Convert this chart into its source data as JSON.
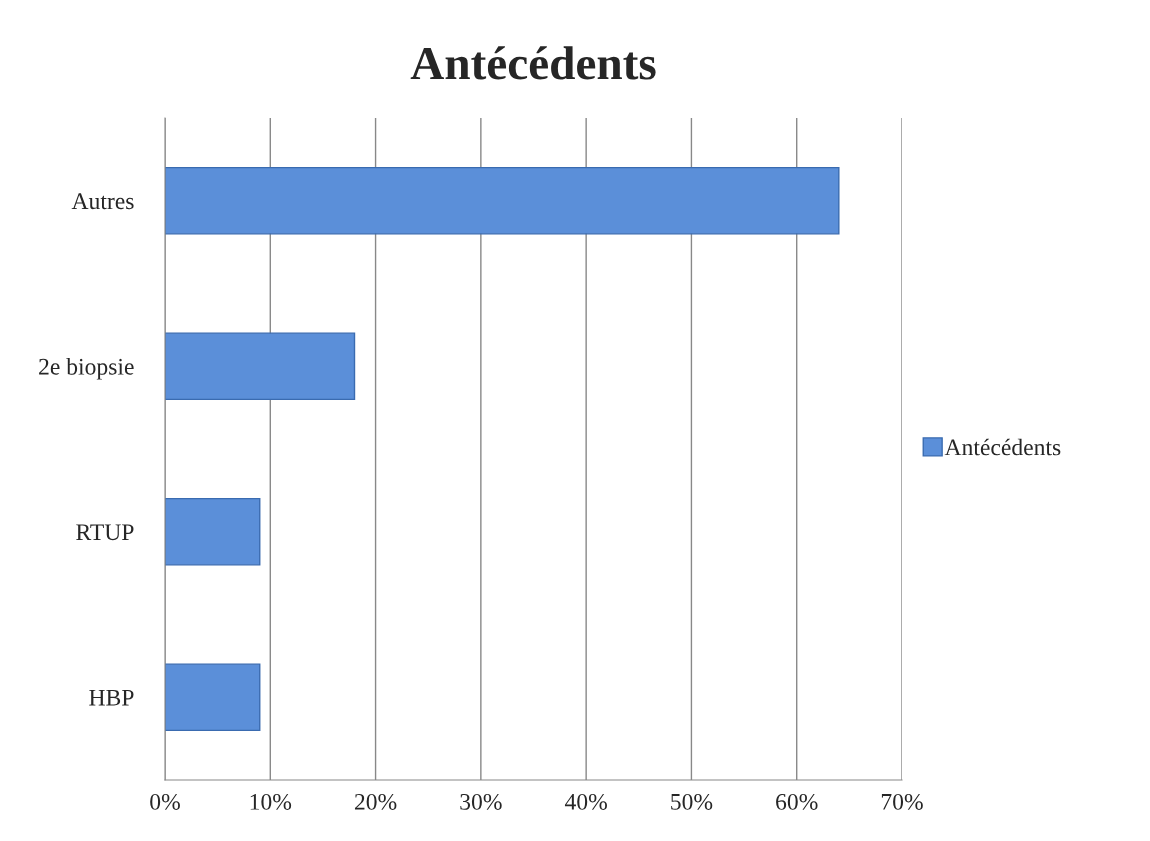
{
  "chart_data": {
    "type": "bar",
    "orientation": "horizontal",
    "title": "Antécédents",
    "categories": [
      "Autres",
      "2e biopsie",
      "RTUP",
      "HBP"
    ],
    "series": [
      {
        "name": "Antécédents",
        "color": "#5b8fd9",
        "values": [
          64,
          18,
          9,
          9
        ]
      }
    ],
    "xlim": [
      0,
      70
    ],
    "xticks": [
      {
        "value": 0,
        "label": "0%"
      },
      {
        "value": 10,
        "label": "10%"
      },
      {
        "value": 20,
        "label": "20%"
      },
      {
        "value": 30,
        "label": "30%"
      },
      {
        "value": 40,
        "label": "40%"
      },
      {
        "value": 50,
        "label": "50%"
      },
      {
        "value": 60,
        "label": "60%"
      },
      {
        "value": 70,
        "label": "70%"
      }
    ],
    "grid": "x",
    "legend": "right"
  }
}
